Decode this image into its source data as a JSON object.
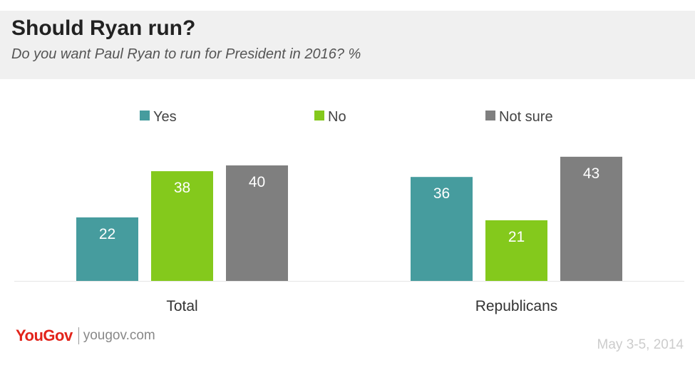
{
  "header": {
    "title": "Should Ryan run?",
    "subtitle": "Do you want Paul Ryan to run for President in 2016? %"
  },
  "chart_data": {
    "type": "bar",
    "title": "Should Ryan run?",
    "subtitle": "Do you want Paul Ryan to run for President in 2016? %",
    "categories": [
      "Total",
      "Republicans"
    ],
    "series": [
      {
        "name": "Yes",
        "values": [
          22,
          36
        ],
        "color": "#469c9e"
      },
      {
        "name": "No",
        "values": [
          38,
          21
        ],
        "color": "#84c91c"
      },
      {
        "name": "Not sure",
        "values": [
          40,
          43
        ],
        "color": "#7f7f7f"
      }
    ],
    "ylim": [
      0,
      45
    ],
    "grid": false,
    "legend": "top",
    "data_labels": true
  },
  "footer": {
    "brand": "YouGov",
    "site": "yougov.com",
    "date": "May 3-5, 2014"
  }
}
